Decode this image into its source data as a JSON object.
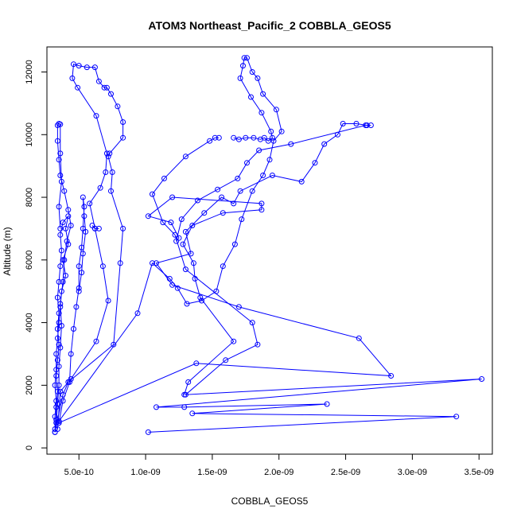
{
  "chart_data": {
    "type": "line",
    "title": "ATOM3 Northeast_Pacific_2 COBBLA_GEOS5",
    "xlabel": "COBBLA_GEOS5",
    "ylabel": "Altitude (m)",
    "xlim": [
      2.6e-10,
      3.6e-09
    ],
    "ylim": [
      -200,
      12800
    ],
    "x_ticks": [
      5e-10,
      1e-09,
      1.5e-09,
      2e-09,
      2.5e-09,
      3e-09,
      3.5e-09
    ],
    "x_tick_labels": [
      "5.0e-10",
      "1.0e-09",
      "1.5e-09",
      "2.0e-09",
      "2.5e-09",
      "3.0e-09",
      "3.5e-09"
    ],
    "y_ticks": [
      0,
      2000,
      4000,
      6000,
      8000,
      10000,
      12000
    ],
    "y_tick_labels": [
      "0",
      "2000",
      "4000",
      "6000",
      "8000",
      "10000",
      "12000"
    ],
    "marker": "open-circle",
    "color": "#0000ff",
    "grid": false,
    "series": [
      {
        "points": [
          [
            3.2e-10,
            500
          ],
          [
            3.3e-10,
            900
          ],
          [
            3.3e-10,
            1300
          ],
          [
            3.4e-10,
            1800
          ],
          [
            3.3e-10,
            2300
          ],
          [
            3.4e-10,
            2800
          ],
          [
            3.5e-10,
            3300
          ],
          [
            3.4e-10,
            3800
          ],
          [
            3.5e-10,
            4300
          ],
          [
            3.4e-10,
            4800
          ],
          [
            3.5e-10,
            5300
          ],
          [
            3.6e-10,
            5800
          ],
          [
            3.7e-10,
            6300
          ],
          [
            3.6e-10,
            6800
          ],
          [
            3.8e-10,
            7200
          ],
          [
            4.2e-10,
            7400
          ],
          [
            4e-10,
            7000
          ],
          [
            4.2e-10,
            6500
          ],
          [
            3.8e-10,
            6000
          ],
          [
            4e-10,
            5500
          ],
          [
            3.7e-10,
            5000
          ],
          [
            3.6e-10,
            4500
          ],
          [
            3.5e-10,
            4000
          ],
          [
            3.4e-10,
            3500
          ],
          [
            3.3e-10,
            3000
          ],
          [
            3.3e-10,
            2500
          ],
          [
            3.2e-10,
            2000
          ],
          [
            3.3e-10,
            1500
          ],
          [
            3.2e-10,
            1000
          ],
          [
            3.2e-10,
            600
          ]
        ]
      },
      {
        "points": [
          [
            3.3e-10,
            800
          ],
          [
            3.4e-10,
            1400
          ],
          [
            3.5e-10,
            2000
          ],
          [
            3.5e-10,
            2600
          ],
          [
            3.6e-10,
            3200
          ],
          [
            3.7e-10,
            3900
          ],
          [
            3.6e-10,
            4600
          ],
          [
            3.8e-10,
            5300
          ],
          [
            3.9e-10,
            6000
          ],
          [
            4.1e-10,
            6600
          ],
          [
            4.4e-10,
            7100
          ],
          [
            4.2e-10,
            7600
          ],
          [
            3.9e-10,
            8200
          ],
          [
            3.6e-10,
            8700
          ],
          [
            3.5e-10,
            9200
          ],
          [
            3.4e-10,
            9800
          ],
          [
            3.4e-10,
            10300
          ],
          [
            3.5e-10,
            10350
          ],
          [
            3.6e-10,
            10330
          ],
          [
            3.6e-10,
            9400
          ],
          [
            3.7e-10,
            8500
          ],
          [
            3.5e-10,
            7700
          ],
          [
            3.6e-10,
            7000
          ]
        ]
      },
      {
        "points": [
          [
            3.5e-10,
            800
          ],
          [
            3.8e-10,
            1500
          ],
          [
            4.3e-10,
            2100
          ],
          [
            4.4e-10,
            3000
          ],
          [
            4.6e-10,
            3800
          ],
          [
            4.8e-10,
            4500
          ],
          [
            5e-10,
            5100
          ],
          [
            5e-10,
            5800
          ],
          [
            5.2e-10,
            6400
          ],
          [
            5.3e-10,
            7000
          ],
          [
            5.4e-10,
            7700
          ],
          [
            5.3e-10,
            8000
          ],
          [
            5.4e-10,
            7400
          ],
          [
            5.5e-10,
            6900
          ],
          [
            5.3e-10,
            6200
          ],
          [
            5.2e-10,
            5600
          ],
          [
            5e-10,
            5000
          ]
        ]
      },
      {
        "points": [
          [
            3.4e-10,
            600
          ],
          [
            3.6e-10,
            1800
          ],
          [
            4.4e-10,
            2200
          ],
          [
            6.3e-10,
            3400
          ],
          [
            7.2e-10,
            4700
          ],
          [
            6.8e-10,
            5800
          ],
          [
            6.2e-10,
            7000
          ],
          [
            6e-10,
            7100
          ]
        ]
      },
      {
        "points": [
          [
            3.2e-10,
            500
          ],
          [
            3.8e-10,
            1700
          ],
          [
            4.2e-10,
            2100
          ],
          [
            7.6e-10,
            3300
          ],
          [
            8.1e-10,
            5900
          ],
          [
            8.3e-10,
            7000
          ],
          [
            7.4e-10,
            8200
          ],
          [
            7.5e-10,
            8800
          ],
          [
            7.2e-10,
            9300
          ],
          [
            7.3e-10,
            9400
          ],
          [
            8.3e-10,
            9900
          ],
          [
            8.3e-10,
            10400
          ],
          [
            7.9e-10,
            10900
          ],
          [
            7.4e-10,
            11300
          ],
          [
            7.1e-10,
            11500
          ],
          [
            6.9e-10,
            11500
          ],
          [
            6.5e-10,
            11700
          ],
          [
            6.2e-10,
            12150
          ],
          [
            5.6e-10,
            12150
          ],
          [
            5e-10,
            12200
          ],
          [
            4.6e-10,
            12250
          ],
          [
            4.5e-10,
            11800
          ],
          [
            4.9e-10,
            11500
          ],
          [
            6.3e-10,
            10600
          ],
          [
            7.1e-10,
            9400
          ],
          [
            7e-10,
            8800
          ],
          [
            6.6e-10,
            8300
          ],
          [
            5.8e-10,
            7800
          ],
          [
            6.2e-10,
            7000
          ],
          [
            6.5e-10,
            7000
          ]
        ]
      },
      {
        "points": [
          [
            3.5e-10,
            850
          ],
          [
            9.4e-10,
            4300
          ],
          [
            1.05e-09,
            5900
          ],
          [
            1.18e-09,
            5400
          ],
          [
            1.24e-09,
            5100
          ],
          [
            1.31e-09,
            4600
          ],
          [
            1.42e-09,
            4700
          ],
          [
            1.53e-09,
            5000
          ],
          [
            1.58e-09,
            5800
          ],
          [
            1.67e-09,
            6500
          ],
          [
            1.72e-09,
            7300
          ],
          [
            1.8e-09,
            8200
          ],
          [
            1.88e-09,
            8700
          ],
          [
            1.93e-09,
            9200
          ],
          [
            1.96e-09,
            9800
          ],
          [
            2.02e-09,
            10100
          ],
          [
            1.98e-09,
            10800
          ],
          [
            1.88e-09,
            11300
          ],
          [
            1.84e-09,
            11800
          ],
          [
            1.8e-09,
            12000
          ],
          [
            1.76e-09,
            12450
          ],
          [
            1.74e-09,
            12450
          ],
          [
            1.73e-09,
            12200
          ],
          [
            1.71e-09,
            11800
          ],
          [
            1.79e-09,
            11200
          ],
          [
            1.87e-09,
            10700
          ],
          [
            1.94e-09,
            10100
          ],
          [
            1.95e-09,
            9900
          ],
          [
            1.92e-09,
            9800
          ],
          [
            1.89e-09,
            9900
          ],
          [
            1.86e-09,
            9850
          ],
          [
            1.81e-09,
            9900
          ],
          [
            1.75e-09,
            9900
          ],
          [
            1.7e-09,
            9850
          ],
          [
            1.66e-09,
            9900
          ]
        ]
      },
      {
        "points": [
          [
            1.02e-09,
            500
          ],
          [
            3.33e-09,
            1000
          ],
          [
            1.35e-09,
            1100
          ],
          [
            2.36e-09,
            1400
          ],
          [
            1.29e-09,
            1300
          ],
          [
            1.08e-09,
            1300
          ],
          [
            3.52e-09,
            2200
          ],
          [
            1.3e-09,
            1700
          ],
          [
            1.6e-09,
            2800
          ],
          [
            1.84e-09,
            3300
          ],
          [
            1.8e-09,
            4000
          ],
          [
            1.3e-09,
            5700
          ],
          [
            1.22e-09,
            6800
          ],
          [
            1.13e-09,
            7200
          ],
          [
            1.05e-09,
            8100
          ],
          [
            1.14e-09,
            8600
          ],
          [
            1.3e-09,
            9300
          ],
          [
            1.48e-09,
            9800
          ],
          [
            1.52e-09,
            9900
          ],
          [
            1.55e-09,
            9900
          ]
        ]
      },
      {
        "points": [
          [
            3.5e-10,
            800
          ],
          [
            1.38e-09,
            2700
          ],
          [
            2.84e-09,
            2300
          ],
          [
            2.6e-09,
            3500
          ],
          [
            1.7e-09,
            4500
          ],
          [
            1.2e-09,
            5200
          ],
          [
            1.08e-09,
            5900
          ],
          [
            1.34e-09,
            6200
          ],
          [
            1.3e-09,
            6900
          ],
          [
            1.44e-09,
            7500
          ],
          [
            1.57e-09,
            8000
          ],
          [
            1.66e-09,
            7800
          ],
          [
            1.71e-09,
            8200
          ],
          [
            1.95e-09,
            8700
          ],
          [
            2.17e-09,
            8500
          ],
          [
            2.27e-09,
            9100
          ],
          [
            2.34e-09,
            9700
          ],
          [
            2.44e-09,
            10000
          ],
          [
            2.48e-09,
            10350
          ],
          [
            2.58e-09,
            10350
          ],
          [
            2.66e-09,
            10300
          ],
          [
            2.69e-09,
            10300
          ],
          [
            2.65e-09,
            10300
          ],
          [
            2.09e-09,
            9700
          ],
          [
            1.85e-09,
            9500
          ],
          [
            1.76e-09,
            9100
          ],
          [
            1.69e-09,
            8600
          ],
          [
            1.54e-09,
            8250
          ],
          [
            1.39e-09,
            7900
          ],
          [
            1.27e-09,
            7300
          ],
          [
            1.23e-09,
            6600
          ],
          [
            1.25e-09,
            6700
          ],
          [
            1.19e-09,
            7200
          ],
          [
            1.02e-09,
            7400
          ],
          [
            1.2e-09,
            8000
          ],
          [
            1.87e-09,
            7800
          ],
          [
            1.87e-09,
            7600
          ],
          [
            1.58e-09,
            7500
          ],
          [
            1.35e-09,
            7100
          ],
          [
            1.28e-09,
            6500
          ],
          [
            1.36e-09,
            5900
          ],
          [
            1.37e-09,
            5400
          ],
          [
            1.41e-09,
            4800
          ],
          [
            1.66e-09,
            3400
          ],
          [
            1.32e-09,
            2100
          ],
          [
            1.29e-09,
            1700
          ]
        ]
      }
    ]
  }
}
